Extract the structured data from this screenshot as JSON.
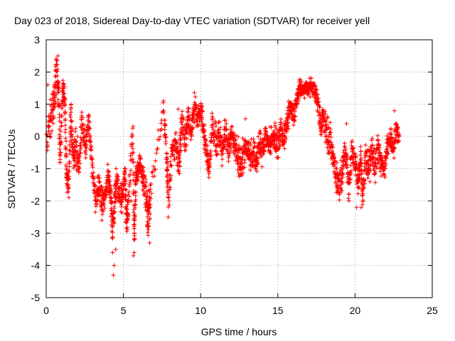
{
  "chart_data": {
    "type": "scatter",
    "title": "Day 023 of 2018, Sidereal Day-to-day VTEC variation (SDTVAR) for receiver yell",
    "xlabel": "GPS time / hours",
    "ylabel": "SDTVAR / TECUs",
    "xlim": [
      0,
      25
    ],
    "ylim": [
      -5,
      3
    ],
    "xticks": [
      "0",
      "5",
      "10",
      "15",
      "20",
      "25"
    ],
    "yticks": [
      "-5",
      "-4",
      "-3",
      "-2",
      "-1",
      "0",
      "1",
      "2",
      "3"
    ],
    "grid": true,
    "marker": "+",
    "series_color": "#ff0000",
    "trend": [
      [
        0.05,
        0.0,
        0.7
      ],
      [
        0.3,
        0.5,
        0.6
      ],
      [
        0.5,
        1.0,
        0.5
      ],
      [
        0.65,
        2.0,
        0.4
      ],
      [
        0.8,
        1.6,
        0.4
      ],
      [
        0.9,
        -0.8,
        0.3
      ],
      [
        1.05,
        1.5,
        0.3
      ],
      [
        1.2,
        1.2,
        0.3
      ],
      [
        1.3,
        -1.0,
        0.4
      ],
      [
        1.45,
        -1.5,
        0.4
      ],
      [
        1.6,
        0.8,
        0.4
      ],
      [
        1.75,
        -0.7,
        0.4
      ],
      [
        1.9,
        -0.2,
        0.5
      ],
      [
        2.1,
        -0.9,
        0.3
      ],
      [
        2.3,
        0.4,
        0.4
      ],
      [
        2.55,
        -0.3,
        0.3
      ],
      [
        2.75,
        0.5,
        0.3
      ],
      [
        2.95,
        -0.8,
        0.3
      ],
      [
        3.2,
        -1.9,
        0.3
      ],
      [
        3.4,
        -1.5,
        0.3
      ],
      [
        3.6,
        -2.0,
        0.4
      ],
      [
        3.8,
        -1.8,
        0.3
      ],
      [
        4.0,
        -1.3,
        0.3
      ],
      [
        4.15,
        -1.7,
        0.4
      ],
      [
        4.3,
        -2.8,
        0.5
      ],
      [
        4.45,
        -1.9,
        0.5
      ],
      [
        4.6,
        -1.4,
        0.4
      ],
      [
        4.8,
        -2.0,
        0.4
      ],
      [
        4.95,
        -1.8,
        0.3
      ],
      [
        5.1,
        -1.1,
        0.3
      ],
      [
        5.2,
        -2.8,
        0.4
      ],
      [
        5.3,
        -2.3,
        0.3
      ],
      [
        5.6,
        0.2,
        0.15
      ],
      [
        5.7,
        -3.3,
        0.3
      ],
      [
        5.8,
        -1.3,
        0.3
      ],
      [
        5.95,
        -1.0,
        0.3
      ],
      [
        6.1,
        -0.8,
        0.2
      ],
      [
        6.3,
        -1.4,
        0.3
      ],
      [
        6.5,
        -1.8,
        0.5
      ],
      [
        6.6,
        -2.6,
        0.5
      ],
      [
        6.75,
        -1.8,
        0.5
      ],
      [
        7.6,
        0.9,
        0.15
      ],
      [
        7.8,
        -0.6,
        0.5
      ],
      [
        7.9,
        -2.0,
        0.4
      ],
      [
        8.15,
        -0.5,
        0.3
      ],
      [
        8.4,
        -0.1,
        0.3
      ],
      [
        8.6,
        -1.0,
        0.4
      ],
      [
        8.75,
        0.4,
        0.4
      ],
      [
        9.0,
        0.0,
        0.4
      ],
      [
        9.2,
        0.5,
        0.3
      ],
      [
        9.4,
        0.2,
        0.3
      ],
      [
        9.6,
        1.0,
        0.4
      ],
      [
        9.8,
        0.5,
        0.3
      ],
      [
        10.0,
        0.9,
        0.3
      ],
      [
        10.2,
        0.2,
        0.4
      ],
      [
        10.4,
        -0.5,
        0.4
      ],
      [
        10.55,
        -1.0,
        0.2
      ],
      [
        10.75,
        0.3,
        0.4
      ],
      [
        11.0,
        -0.2,
        0.4
      ],
      [
        11.2,
        0.0,
        0.4
      ],
      [
        11.4,
        -0.4,
        0.4
      ],
      [
        11.6,
        0.3,
        0.4
      ],
      [
        11.8,
        -0.5,
        0.3
      ],
      [
        12.0,
        0.1,
        0.4
      ],
      [
        12.2,
        -0.3,
        0.3
      ],
      [
        12.4,
        -0.6,
        0.5
      ],
      [
        12.6,
        -0.8,
        0.5
      ],
      [
        12.8,
        -0.5,
        0.4
      ],
      [
        13.0,
        -0.3,
        0.3
      ],
      [
        13.2,
        -0.6,
        0.4
      ],
      [
        13.4,
        -0.5,
        0.4
      ],
      [
        13.6,
        -0.8,
        0.4
      ],
      [
        13.8,
        -0.2,
        0.4
      ],
      [
        14.0,
        -0.5,
        0.4
      ],
      [
        14.2,
        0.1,
        0.3
      ],
      [
        14.4,
        -0.3,
        0.3
      ],
      [
        14.6,
        -0.1,
        0.3
      ],
      [
        14.8,
        0.0,
        0.3
      ],
      [
        15.0,
        -0.3,
        0.3
      ],
      [
        15.2,
        0.2,
        0.3
      ],
      [
        15.4,
        -0.1,
        0.3
      ],
      [
        15.6,
        0.4,
        0.3
      ],
      [
        15.8,
        0.9,
        0.3
      ],
      [
        16.0,
        0.6,
        0.3
      ],
      [
        16.2,
        1.0,
        0.3
      ],
      [
        16.4,
        1.5,
        0.2
      ],
      [
        16.6,
        1.4,
        0.2
      ],
      [
        16.8,
        1.5,
        0.2
      ],
      [
        17.0,
        1.5,
        0.2
      ],
      [
        17.2,
        1.6,
        0.2
      ],
      [
        17.4,
        1.4,
        0.2
      ],
      [
        17.6,
        1.0,
        0.3
      ],
      [
        17.8,
        0.3,
        0.4
      ],
      [
        18.0,
        0.7,
        0.4
      ],
      [
        18.2,
        0.0,
        0.4
      ],
      [
        18.4,
        -0.2,
        0.4
      ],
      [
        18.6,
        -0.7,
        0.3
      ],
      [
        18.8,
        -1.3,
        0.4
      ],
      [
        19.0,
        -1.5,
        0.4
      ],
      [
        19.2,
        -0.9,
        0.4
      ],
      [
        19.4,
        -0.5,
        0.3
      ],
      [
        19.6,
        -1.6,
        0.4
      ],
      [
        19.8,
        -0.4,
        0.4
      ],
      [
        20.0,
        -0.8,
        0.4
      ],
      [
        20.2,
        -1.5,
        0.4
      ],
      [
        20.35,
        -0.6,
        0.4
      ],
      [
        20.5,
        -1.9,
        0.3
      ],
      [
        20.7,
        -0.5,
        0.4
      ],
      [
        20.9,
        -1.0,
        0.4
      ],
      [
        21.1,
        -0.5,
        0.4
      ],
      [
        21.3,
        -0.9,
        0.4
      ],
      [
        21.5,
        -0.3,
        0.4
      ],
      [
        21.7,
        -0.9,
        0.3
      ],
      [
        21.9,
        -1.0,
        0.2
      ],
      [
        22.1,
        -0.3,
        0.3
      ],
      [
        22.3,
        0.0,
        0.3
      ],
      [
        22.5,
        -0.4,
        0.3
      ],
      [
        22.7,
        0.3,
        0.3
      ],
      [
        22.85,
        0.0,
        0.3
      ]
    ],
    "outliers": [
      [
        4.35,
        -4.3
      ],
      [
        4.4,
        -4.0
      ],
      [
        4.3,
        -3.6
      ],
      [
        4.5,
        -3.5
      ],
      [
        5.65,
        -3.7
      ],
      [
        5.7,
        -3.6
      ],
      [
        5.5,
        -2.0
      ],
      [
        6.7,
        -3.3
      ],
      [
        0.1,
        1.6
      ],
      [
        0.75,
        2.5
      ],
      [
        3.6,
        -2.6
      ],
      [
        7.9,
        -2.5
      ],
      [
        8.55,
        0.85
      ],
      [
        12.9,
        0.55
      ],
      [
        14.5,
        0.3
      ],
      [
        20.1,
        -2.2
      ],
      [
        20.4,
        -2.2
      ],
      [
        22.55,
        0.8
      ],
      [
        19.45,
        0.4
      ]
    ]
  }
}
